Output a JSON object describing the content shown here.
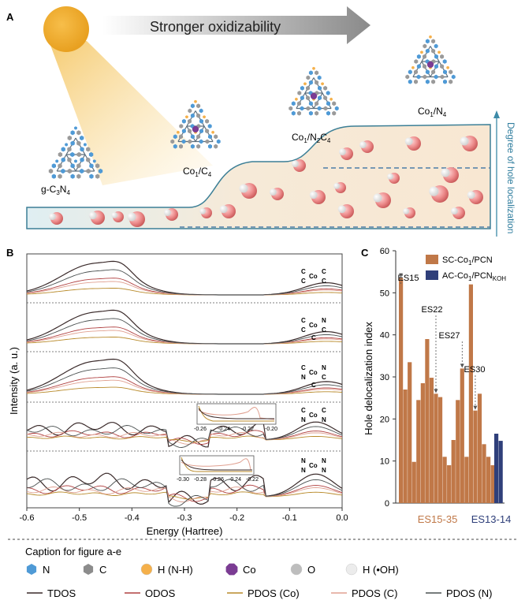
{
  "panel_a": {
    "label": "A",
    "arrow_text": "Stronger oxidizability",
    "axis_text": "Degree of hole localization",
    "structures": [
      {
        "name": "g-C3N4",
        "base": "g-C",
        "sub1": "3",
        "mid": "N",
        "sub2": "4",
        "tail": ""
      },
      {
        "name": "Co1/C4",
        "base": "Co",
        "sub1": "1",
        "mid": "/C",
        "sub2": "4",
        "tail": ""
      },
      {
        "name": "Co1/N2C4",
        "base": "Co",
        "sub1": "1",
        "mid": "/N",
        "sub2": "2",
        "tail": "C",
        "sub3": "4"
      },
      {
        "name": "Co1/N4",
        "base": "Co",
        "sub1": "1",
        "mid": "/N",
        "sub2": "4",
        "tail": ""
      }
    ]
  },
  "panel_b": {
    "label": "B",
    "ylabel": "Intensity (a. u.)",
    "xlabel": "Energy (Hartree)",
    "xticks": [
      "-0.6",
      "-0.5",
      "-0.4",
      "-0.3",
      "-0.2",
      "-0.1",
      "0.0"
    ],
    "inset1_ticks": [
      "-0.26",
      "-0.24",
      "-0.22",
      "-0.20"
    ],
    "inset2_ticks": [
      "-0.30",
      "-0.28",
      "-0.26",
      "-0.24",
      "-0.22"
    ],
    "coordination_labels": [
      {
        "tl": "C",
        "bl": "C",
        "center": "Co",
        "tr": "C",
        "br": "C",
        "bottom": ""
      },
      {
        "tl": "C",
        "bl": "C",
        "center": "Co",
        "tr": "N",
        "br": "C",
        "bottom": "C"
      },
      {
        "tl": "C",
        "bl": "N",
        "center": "Co",
        "tr": "N",
        "br": "C",
        "bottom": "C"
      },
      {
        "tl": "C",
        "bl": "N",
        "center": "Co",
        "tr": "C",
        "br": "N",
        "bottom": ""
      },
      {
        "tl": "N",
        "bl": "N",
        "center": "Co",
        "tr": "N",
        "br": "N",
        "bottom": ""
      }
    ]
  },
  "chart_data": {
    "type": "bar",
    "label": "C",
    "ylabel": "Hole delocalization index",
    "ylim": [
      0,
      60
    ],
    "yticks": [
      0,
      10,
      20,
      30,
      40,
      50,
      60
    ],
    "legend": [
      {
        "name": "SC-Co1/PCN",
        "base": "SC-Co",
        "sub": "1",
        "tail": "/PCN",
        "color": "#c07848"
      },
      {
        "name": "AC-Co1/PCNKOH",
        "base": "AC-Co",
        "sub": "1",
        "tail": "/PCN",
        "sub2": "KOH",
        "color": "#2f3f7a"
      }
    ],
    "series": [
      {
        "name": "SC-Co1/PCN",
        "color": "#c07848",
        "values": [
          53.5,
          27,
          33.5,
          9.8,
          24.5,
          28.5,
          39,
          29.8,
          26,
          25.2,
          11,
          9,
          15,
          24.5,
          32,
          11,
          52,
          22,
          26,
          14,
          11,
          9
        ]
      },
      {
        "name": "AC-Co1/PCNKOH",
        "color": "#2f3f7a",
        "values": [
          16.5,
          14.8
        ]
      }
    ],
    "annotations": [
      "ES15",
      "ES22",
      "ES27",
      "ES30"
    ],
    "category_labels": [
      "ES15-35",
      "ES13-14"
    ]
  },
  "caption": {
    "title": "Caption for figure a-e",
    "atoms": [
      {
        "label": "N",
        "color": "#4f9ad6",
        "shape": "hex"
      },
      {
        "label": "C",
        "color": "#8c8c8c",
        "shape": "hex"
      },
      {
        "label": "H (N-H)",
        "color": "#f5b04a",
        "shape": "circle"
      },
      {
        "label": "Co",
        "color": "#7b3c93",
        "shape": "oct"
      },
      {
        "label": "O",
        "color": "#bdbdbd",
        "shape": "circle"
      },
      {
        "label": "H (•OH)",
        "color": "#ececec",
        "shape": "circle"
      }
    ],
    "lines": [
      {
        "label": "TDOS",
        "color": "#3a2a2a"
      },
      {
        "label": "ODOS",
        "color": "#b04040"
      },
      {
        "label": "PDOS (Co)",
        "color": "#b88a2a"
      },
      {
        "label": "PDOS (C)",
        "color": "#e0a090"
      },
      {
        "label": "PDOS (N)",
        "color": "#4a5050"
      }
    ]
  }
}
